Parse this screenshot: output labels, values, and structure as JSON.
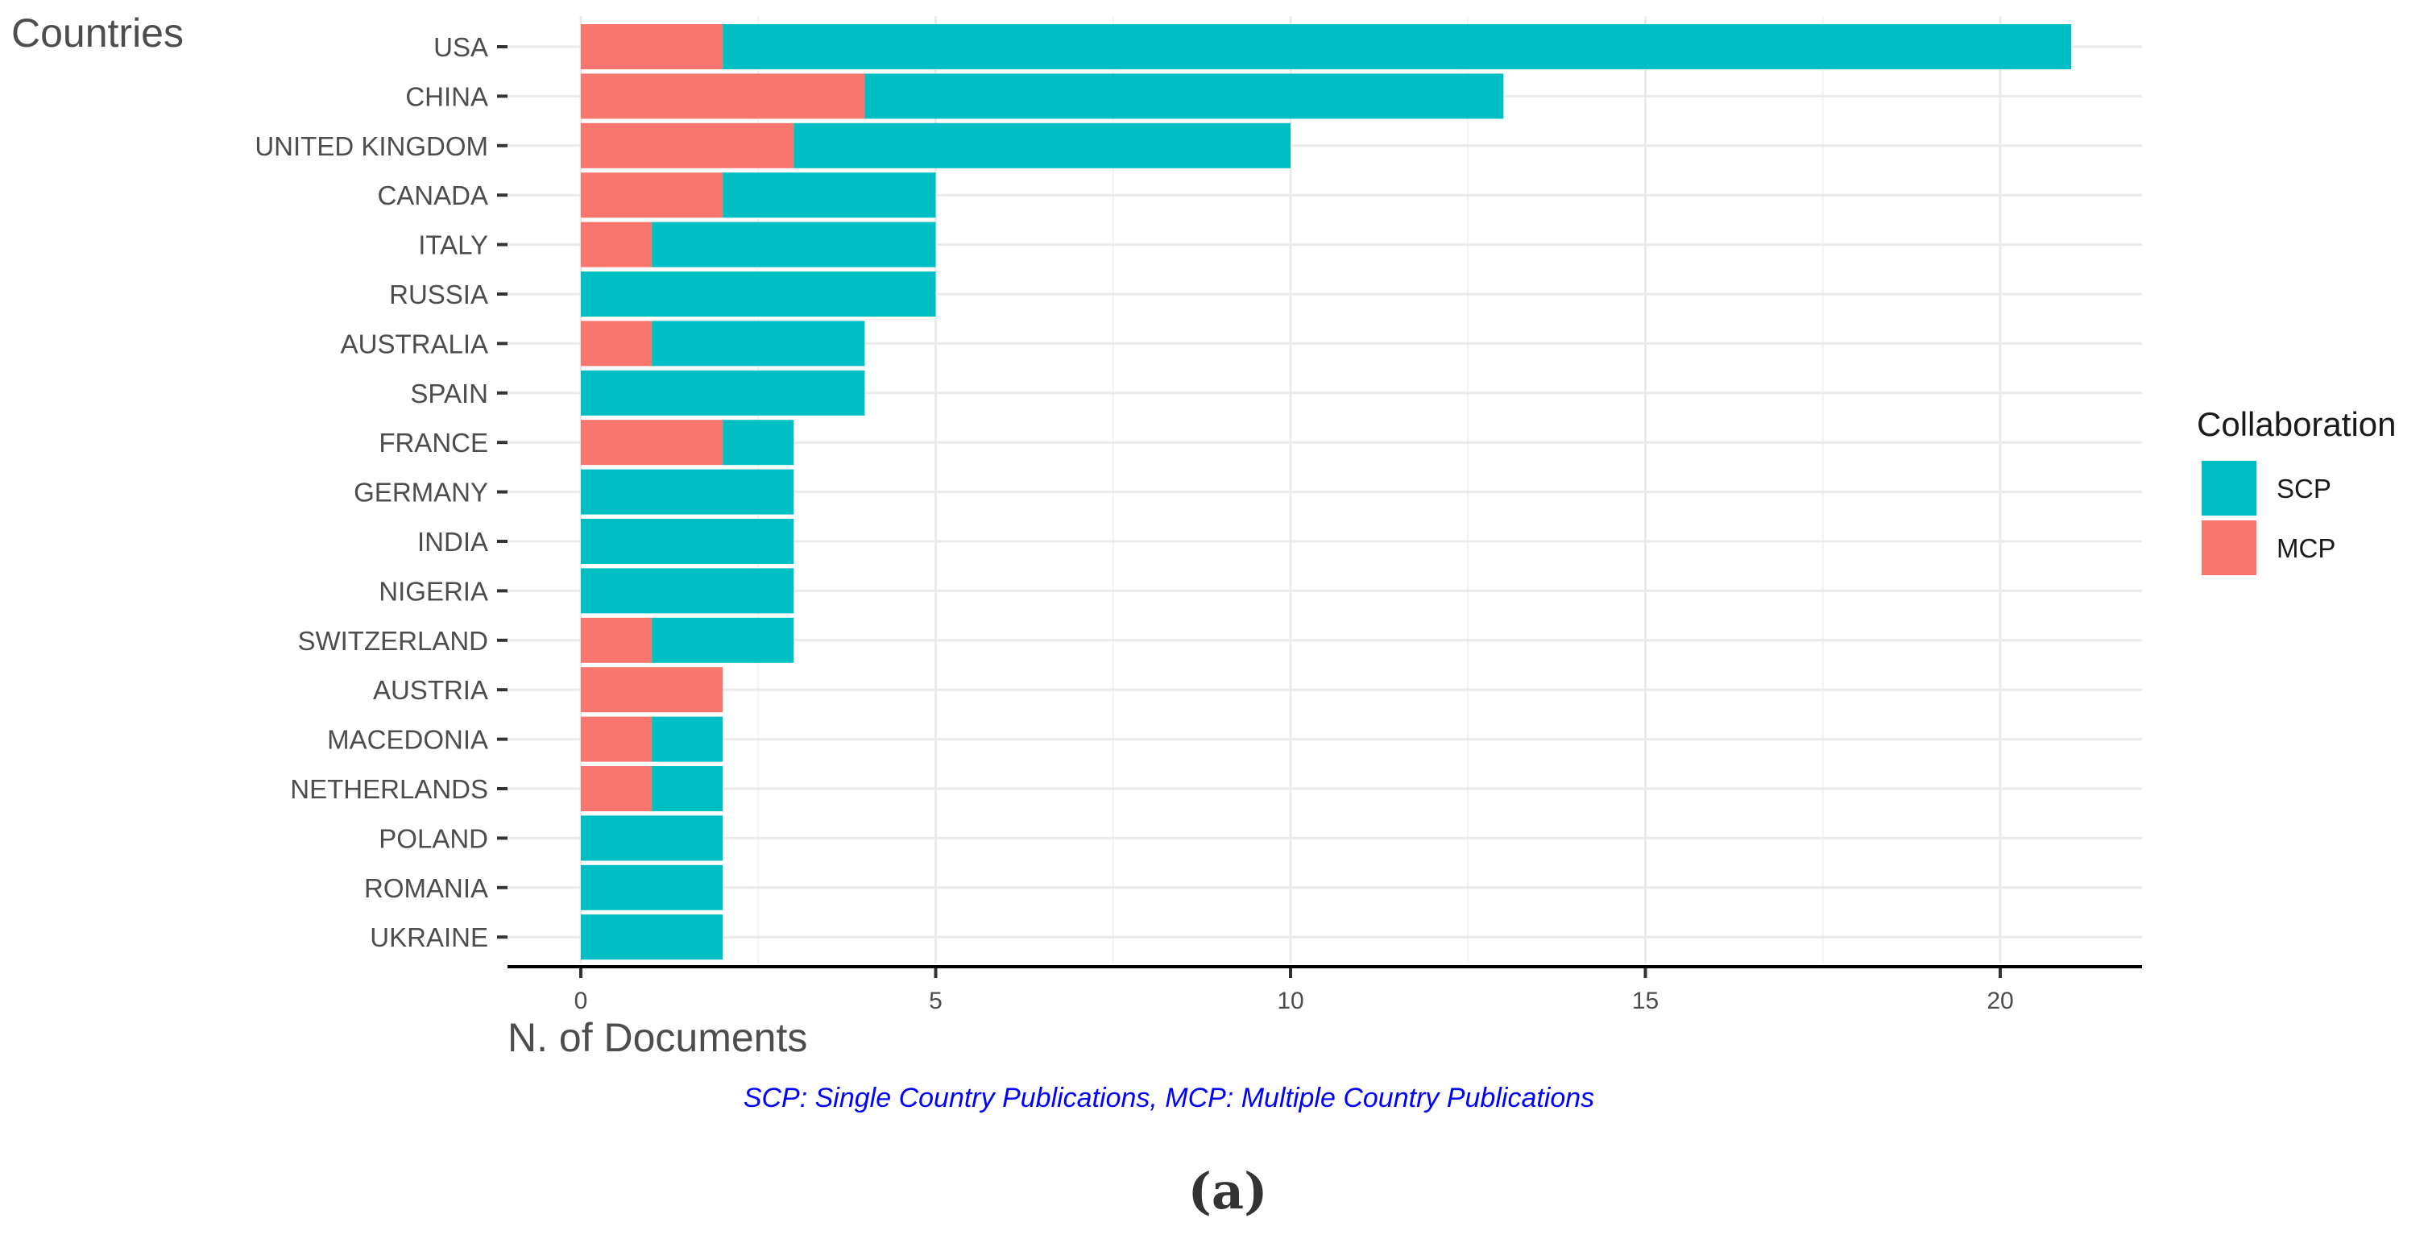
{
  "chart_data": {
    "type": "bar",
    "orientation": "horizontal",
    "stacked": true,
    "ylabel": "Countries",
    "xlabel": "N. of Documents",
    "categories": [
      "USA",
      "CHINA",
      "UNITED KINGDOM",
      "CANADA",
      "ITALY",
      "RUSSIA",
      "AUSTRALIA",
      "SPAIN",
      "FRANCE",
      "GERMANY",
      "INDIA",
      "NIGERIA",
      "SWITZERLAND",
      "AUSTRIA",
      "MACEDONIA",
      "NETHERLANDS",
      "POLAND",
      "ROMANIA",
      "UKRAINE"
    ],
    "series": [
      {
        "name": "SCP",
        "color": "#00BFC4",
        "values": [
          19,
          9,
          7,
          3,
          4,
          5,
          3,
          4,
          1,
          3,
          3,
          3,
          2,
          0,
          1,
          1,
          2,
          2,
          2
        ]
      },
      {
        "name": "MCP",
        "color": "#F8766D",
        "values": [
          2,
          4,
          3,
          2,
          1,
          0,
          1,
          0,
          2,
          0,
          0,
          0,
          1,
          2,
          1,
          1,
          0,
          0,
          0
        ]
      }
    ],
    "xlim": [
      0,
      22
    ],
    "xticks": [
      0,
      5,
      10,
      15,
      20
    ],
    "grid": true,
    "legend": {
      "title": "Collaboration",
      "position": "right",
      "entries": [
        "SCP",
        "MCP"
      ]
    },
    "caption": "SCP: Single Country Publications, MCP: Multiple Country Publications",
    "panel_label": "(a)"
  }
}
